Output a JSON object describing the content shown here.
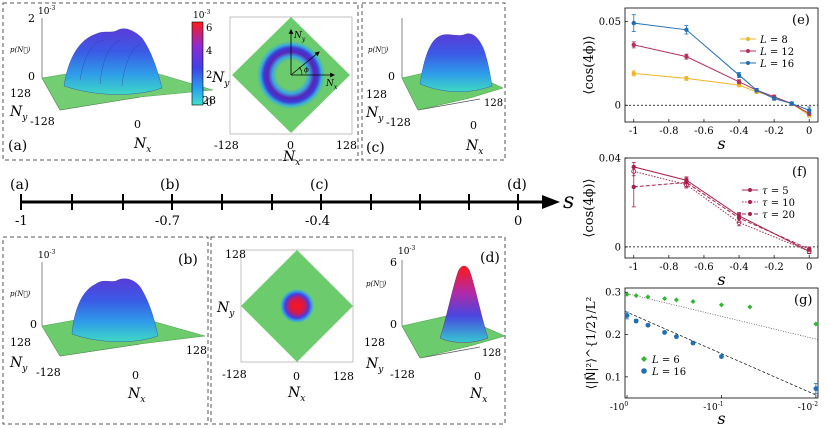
{
  "figure": {
    "panels_3d": [
      {
        "id": "a",
        "label": "(a)",
        "scale": "10",
        "scale_exp": "-3",
        "zlabel": "p(N⃗)",
        "z_top": "2",
        "z_bottom": "0",
        "ny_tick": "128",
        "nx_tick": "0",
        "corner_left": "-128",
        "corner_right": "128",
        "axis_y": "N",
        "axis_y_sub": "y",
        "axis_x": "N",
        "axis_x_sub": "x"
      },
      {
        "id": "c",
        "label": "(c)",
        "zlabel": "p(N⃗)",
        "z_top": "",
        "z_bottom": "0",
        "ny_tick": "128",
        "nx_tick": "0",
        "corner_left": "-128",
        "corner_right": "128",
        "axis_y": "N",
        "axis_y_sub": "y",
        "axis_x": "N",
        "axis_x_sub": "x"
      },
      {
        "id": "b",
        "label": "(b)",
        "scale": "10",
        "scale_exp": "-3",
        "zlabel": "p(N⃗)",
        "z_top": "",
        "z_bottom": "0",
        "ny_tick": "128",
        "nx_tick": "0",
        "corner_left": "-128",
        "corner_right": "128",
        "axis_y": "N",
        "axis_y_sub": "y",
        "axis_x": "N",
        "axis_x_sub": "x"
      },
      {
        "id": "d",
        "label": "(d)",
        "scale": "10",
        "scale_exp": "-3",
        "zlabel": "p(N⃗)",
        "z_top": "6",
        "z_bottom": "0",
        "ny_tick": "128",
        "nx_tick": "0",
        "corner_left": "-128",
        "corner_right": "128",
        "axis_y": "N",
        "axis_y_sub": "y",
        "axis_x": "N",
        "axis_x_sub": "x"
      }
    ],
    "colorbar": {
      "scale": "10",
      "scale_exp": "-3",
      "ticks": [
        "6",
        "4",
        "2",
        "0"
      ],
      "colors": [
        "#ff1a1a",
        "#8a2bd6",
        "#4040e8",
        "#2a9ff0",
        "#3fe0cf"
      ]
    },
    "maps_2d": [
      {
        "id": "ring",
        "ticks_x": [
          "-128",
          "0",
          "128"
        ],
        "ticks_y_top": "",
        "ticks_y_bottom": "",
        "axis_y": "N",
        "axis_y_sub": "y",
        "axis_x": "N",
        "axis_x_sub": "x",
        "inset_y": "N",
        "inset_y_sub": "y",
        "inset_x": "N",
        "inset_x_sub": "x",
        "inset_angle": "ϕ"
      },
      {
        "id": "disk",
        "ticks_x": [
          "-128",
          "0",
          "128"
        ],
        "ticks_y_top": "128",
        "ticks_y_bottom": "-128",
        "axis_y": "N",
        "axis_y_sub": "y",
        "axis_x": "N",
        "axis_x_sub": "x"
      }
    ],
    "timeline": {
      "axis_label": "s",
      "points": [
        {
          "label": "(a)",
          "value": "-1"
        },
        {
          "label": "(b)",
          "value": "-0.7"
        },
        {
          "label": "(c)",
          "value": "-0.4"
        },
        {
          "label": "(d)",
          "value": "0"
        }
      ]
    },
    "colors": {
      "green": "#6ccb6c",
      "ring_outer": "#3b3bd9",
      "ring_inner": "#5a24b8",
      "dashed_frame": "#555555"
    }
  },
  "chart_data": [
    {
      "id": "e",
      "panel_label": "(e)",
      "type": "line",
      "title": "",
      "xlabel": "s",
      "ylabel": "⟨cos(4ϕ)⟩",
      "xlim": [
        -1.05,
        0.05
      ],
      "ylim": [
        -0.01,
        0.058
      ],
      "xticks": [
        -1,
        -0.8,
        -0.6,
        -0.4,
        -0.2,
        0
      ],
      "xtick_labels": [
        "-1",
        "-0.8",
        "-0.6",
        "-0.4",
        "-0.2",
        "0"
      ],
      "yticks": [
        0,
        0.05
      ],
      "ytick_labels": [
        "0",
        "0.05"
      ],
      "legend_position": "top-right",
      "series": [
        {
          "name": "L = 8",
          "legend_var": "L",
          "legend_val": "8",
          "color": "#f0b429",
          "x": [
            -1,
            -0.7,
            -0.4,
            -0.3,
            -0.2,
            -0.1,
            0
          ],
          "y": [
            0.019,
            0.016,
            0.012,
            0.008,
            0.005,
            0.001,
            -0.006
          ],
          "err": [
            0.0015,
            0.0012,
            0.001,
            0.001,
            0.001,
            0.001,
            0.001
          ]
        },
        {
          "name": "L = 12",
          "legend_var": "L",
          "legend_val": "12",
          "color": "#b5305a",
          "x": [
            -1,
            -0.7,
            -0.4,
            -0.3,
            -0.2,
            -0.1,
            0
          ],
          "y": [
            0.036,
            0.029,
            0.014,
            0.009,
            0.005,
            0.001,
            -0.005
          ],
          "err": [
            0.0018,
            0.0015,
            0.0012,
            0.001,
            0.001,
            0.001,
            0.001
          ]
        },
        {
          "name": "L = 16",
          "legend_var": "L",
          "legend_val": "16",
          "color": "#1f6fb5",
          "x": [
            -1,
            -0.7,
            -0.4,
            -0.3,
            -0.2,
            -0.1,
            0
          ],
          "y": [
            0.049,
            0.045,
            0.018,
            0.009,
            0.004,
            0.001,
            -0.003
          ],
          "err": [
            0.005,
            0.0025,
            0.0015,
            0.001,
            0.001,
            0.001,
            0.002
          ]
        }
      ]
    },
    {
      "id": "f",
      "panel_label": "(f)",
      "type": "line",
      "title": "",
      "xlabel": "s",
      "ylabel": "⟨cos(4ϕ)⟩",
      "xlim": [
        -1.05,
        0.05
      ],
      "ylim": [
        -0.005,
        0.04
      ],
      "xticks": [
        -1,
        -0.8,
        -0.6,
        -0.4,
        -0.2,
        0
      ],
      "xtick_labels": [
        "-1",
        "-0.8",
        "-0.6",
        "-0.4",
        "-0.2",
        "0"
      ],
      "yticks": [
        0,
        0.04
      ],
      "ytick_labels": [
        "0",
        "0.04"
      ],
      "legend_position": "right",
      "series": [
        {
          "name": "τ = 5",
          "legend_var": "τ",
          "legend_val": "5",
          "color": "#a8224a",
          "dash": "",
          "x": [
            -1,
            -0.7,
            -0.4,
            0
          ],
          "y": [
            0.036,
            0.03,
            0.014,
            -0.002
          ],
          "err": [
            0.002,
            0.0015,
            0.0015,
            0.001
          ]
        },
        {
          "name": "τ = 10",
          "legend_var": "τ",
          "legend_val": "10",
          "color": "#a8224a",
          "dash": "1.5,1.5",
          "x": [
            -1,
            -0.7,
            -0.4,
            0
          ],
          "y": [
            0.034,
            0.028,
            0.011,
            -0.002
          ],
          "err": [
            0.002,
            0.0015,
            0.0015,
            0.001
          ]
        },
        {
          "name": "τ = 20",
          "legend_var": "τ",
          "legend_val": "20",
          "color": "#a8224a",
          "dash": "4,2",
          "x": [
            -1,
            -0.7,
            -0.4,
            0
          ],
          "y": [
            0.027,
            0.029,
            0.013,
            -0.001
          ],
          "err": [
            0.009,
            0.002,
            0.002,
            0.001
          ]
        }
      ]
    },
    {
      "id": "g",
      "panel_label": "(g)",
      "type": "scatter",
      "title": "",
      "xlabel": "s",
      "ylabel": "⟨|N⃗|²⟩^{1/2}/L²",
      "xscale": "log(-s)",
      "xlim": [
        1.05,
        0.0095
      ],
      "ylim": [
        0.05,
        0.31
      ],
      "xticks": [
        1,
        0.1,
        0.01
      ],
      "xtick_labels": [
        {
          "base": "-10",
          "exp": "0"
        },
        {
          "base": "-10",
          "exp": "-1"
        },
        {
          "base": "-10",
          "exp": "-2"
        }
      ],
      "yticks": [
        0.1,
        0.2,
        0.3
      ],
      "ytick_labels": [
        "0.1",
        "0.2",
        "0.3"
      ],
      "legend_position": "bottom-left",
      "series": [
        {
          "name": "L = 6",
          "legend_var": "L",
          "legend_val": "6",
          "color": "#2fb82f",
          "marker": "diamond",
          "x": [
            1.0,
            0.8,
            0.6,
            0.4,
            0.3,
            0.2,
            0.1,
            0.05,
            0.01
          ],
          "y": [
            0.295,
            0.292,
            0.289,
            0.285,
            0.282,
            0.278,
            0.27,
            0.265,
            0.225
          ],
          "fit": [
            [
              1.05,
              0.298
            ],
            [
              0.0095,
              0.188
            ]
          ]
        },
        {
          "name": "L = 16",
          "legend_var": "L",
          "legend_val": "16",
          "color": "#1f6fb5",
          "marker": "hexagon",
          "x": [
            1.0,
            0.8,
            0.6,
            0.4,
            0.3,
            0.2,
            0.1,
            0.01
          ],
          "y": [
            0.245,
            0.232,
            0.222,
            0.205,
            0.195,
            0.18,
            0.148,
            0.072
          ],
          "err": [
            0.008,
            0.004,
            0.003,
            0.003,
            0.003,
            0.003,
            0.003,
            0.012
          ],
          "fit": [
            [
              1.05,
              0.255
            ],
            [
              0.0095,
              0.055
            ]
          ]
        }
      ]
    }
  ]
}
